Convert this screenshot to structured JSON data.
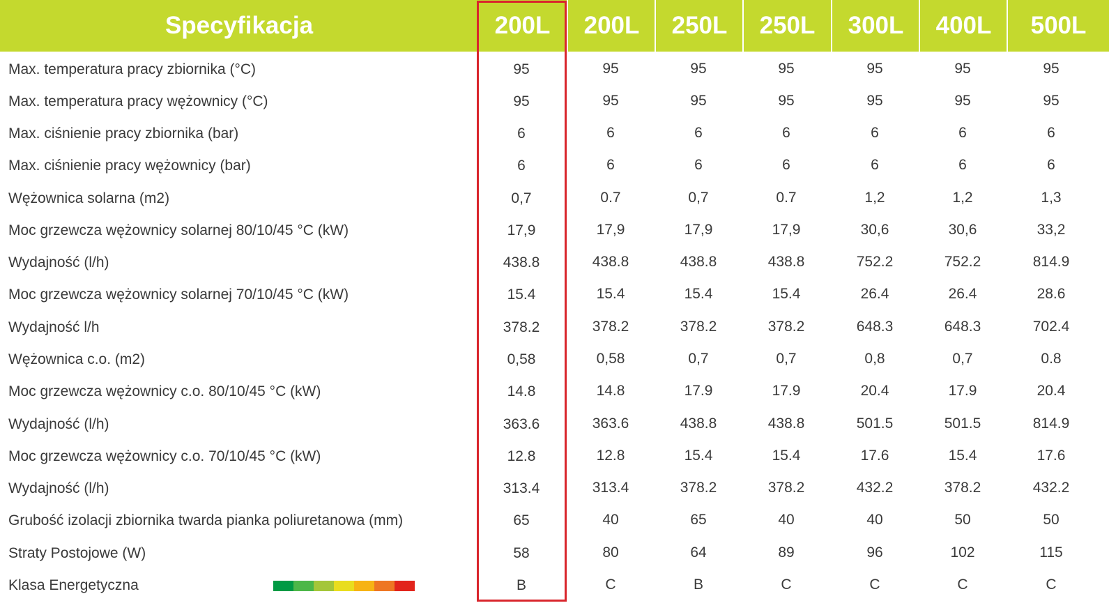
{
  "header": {
    "title": "Specyfikacja",
    "columns": [
      "200L",
      "200L",
      "250L",
      "250L",
      "300L",
      "400L",
      "500L"
    ]
  },
  "rows": [
    {
      "label": "Max. temperatura pracy zbiornika (°C)",
      "values": [
        "95",
        "95",
        "95",
        "95",
        "95",
        "95",
        "95"
      ]
    },
    {
      "label": "Max. temperatura pracy wężownicy (°C)",
      "values": [
        "95",
        "95",
        "95",
        "95",
        "95",
        "95",
        "95"
      ]
    },
    {
      "label": "Max. ciśnienie pracy zbiornika (bar)",
      "values": [
        "6",
        "6",
        "6",
        "6",
        "6",
        "6",
        "6"
      ]
    },
    {
      "label": "Max. ciśnienie pracy wężownicy (bar)",
      "values": [
        "6",
        "6",
        "6",
        "6",
        "6",
        "6",
        "6"
      ]
    },
    {
      "label": "Wężownica solarna (m2)",
      "values": [
        "0,7",
        "0.7",
        "0,7",
        "0.7",
        "1,2",
        "1,2",
        "1,3"
      ]
    },
    {
      "label": "Moc grzewcza wężownicy solarnej 80/10/45 °C (kW)",
      "values": [
        "17,9",
        "17,9",
        "17,9",
        "17,9",
        "30,6",
        "30,6",
        "33,2"
      ]
    },
    {
      "label": "Wydajność (l/h)",
      "values": [
        "438.8",
        "438.8",
        "438.8",
        "438.8",
        "752.2",
        "752.2",
        "814.9"
      ]
    },
    {
      "label": "Moc grzewcza wężownicy solarnej 70/10/45 °C (kW)",
      "values": [
        "15.4",
        "15.4",
        "15.4",
        "15.4",
        "26.4",
        "26.4",
        "28.6"
      ]
    },
    {
      "label": "Wydajność l/h",
      "values": [
        "378.2",
        "378.2",
        "378.2",
        "378.2",
        "648.3",
        "648.3",
        "702.4"
      ]
    },
    {
      "label": "Wężownica c.o. (m2)",
      "values": [
        "0,58",
        "0,58",
        "0,7",
        "0,7",
        "0,8",
        "0,7",
        "0.8"
      ]
    },
    {
      "label": "Moc grzewcza wężownicy c.o. 80/10/45 °C (kW)",
      "values": [
        "14.8",
        "14.8",
        "17.9",
        "17.9",
        "20.4",
        "17.9",
        "20.4"
      ]
    },
    {
      "label": "Wydajność (l/h)",
      "values": [
        "363.6",
        "363.6",
        "438.8",
        "438.8",
        "501.5",
        "501.5",
        "814.9"
      ]
    },
    {
      "label": "Moc grzewcza wężownicy c.o. 70/10/45 °C (kW)",
      "values": [
        "12.8",
        "12.8",
        "15.4",
        "15.4",
        "17.6",
        "15.4",
        "17.6"
      ]
    },
    {
      "label": "Wydajność (l/h)",
      "values": [
        "313.4",
        "313.4",
        "378.2",
        "378.2",
        "432.2",
        "378.2",
        "432.2"
      ]
    },
    {
      "label": "Grubość izolacji zbiornika twarda pianka poliuretanowa (mm)",
      "values": [
        "65",
        "40",
        "65",
        "40",
        "40",
        "50",
        "50"
      ]
    },
    {
      "label": "Straty Postojowe (W)",
      "values": [
        "58",
        "80",
        "64",
        "89",
        "96",
        "102",
        "115"
      ]
    },
    {
      "label": "Klasa Energetyczna",
      "values": [
        "B",
        "C",
        "B",
        "C",
        "C",
        "C",
        "C"
      ]
    }
  ],
  "energy_scale_colors": [
    "#009a44",
    "#4cb748",
    "#a4c639",
    "#e9dd1e",
    "#f7b314",
    "#ee7623",
    "#e2241c"
  ],
  "colors": {
    "header_bg": "#c4d92e",
    "header_text": "#ffffff",
    "highlight_border": "#d9262c",
    "text": "#3a3a3a"
  }
}
